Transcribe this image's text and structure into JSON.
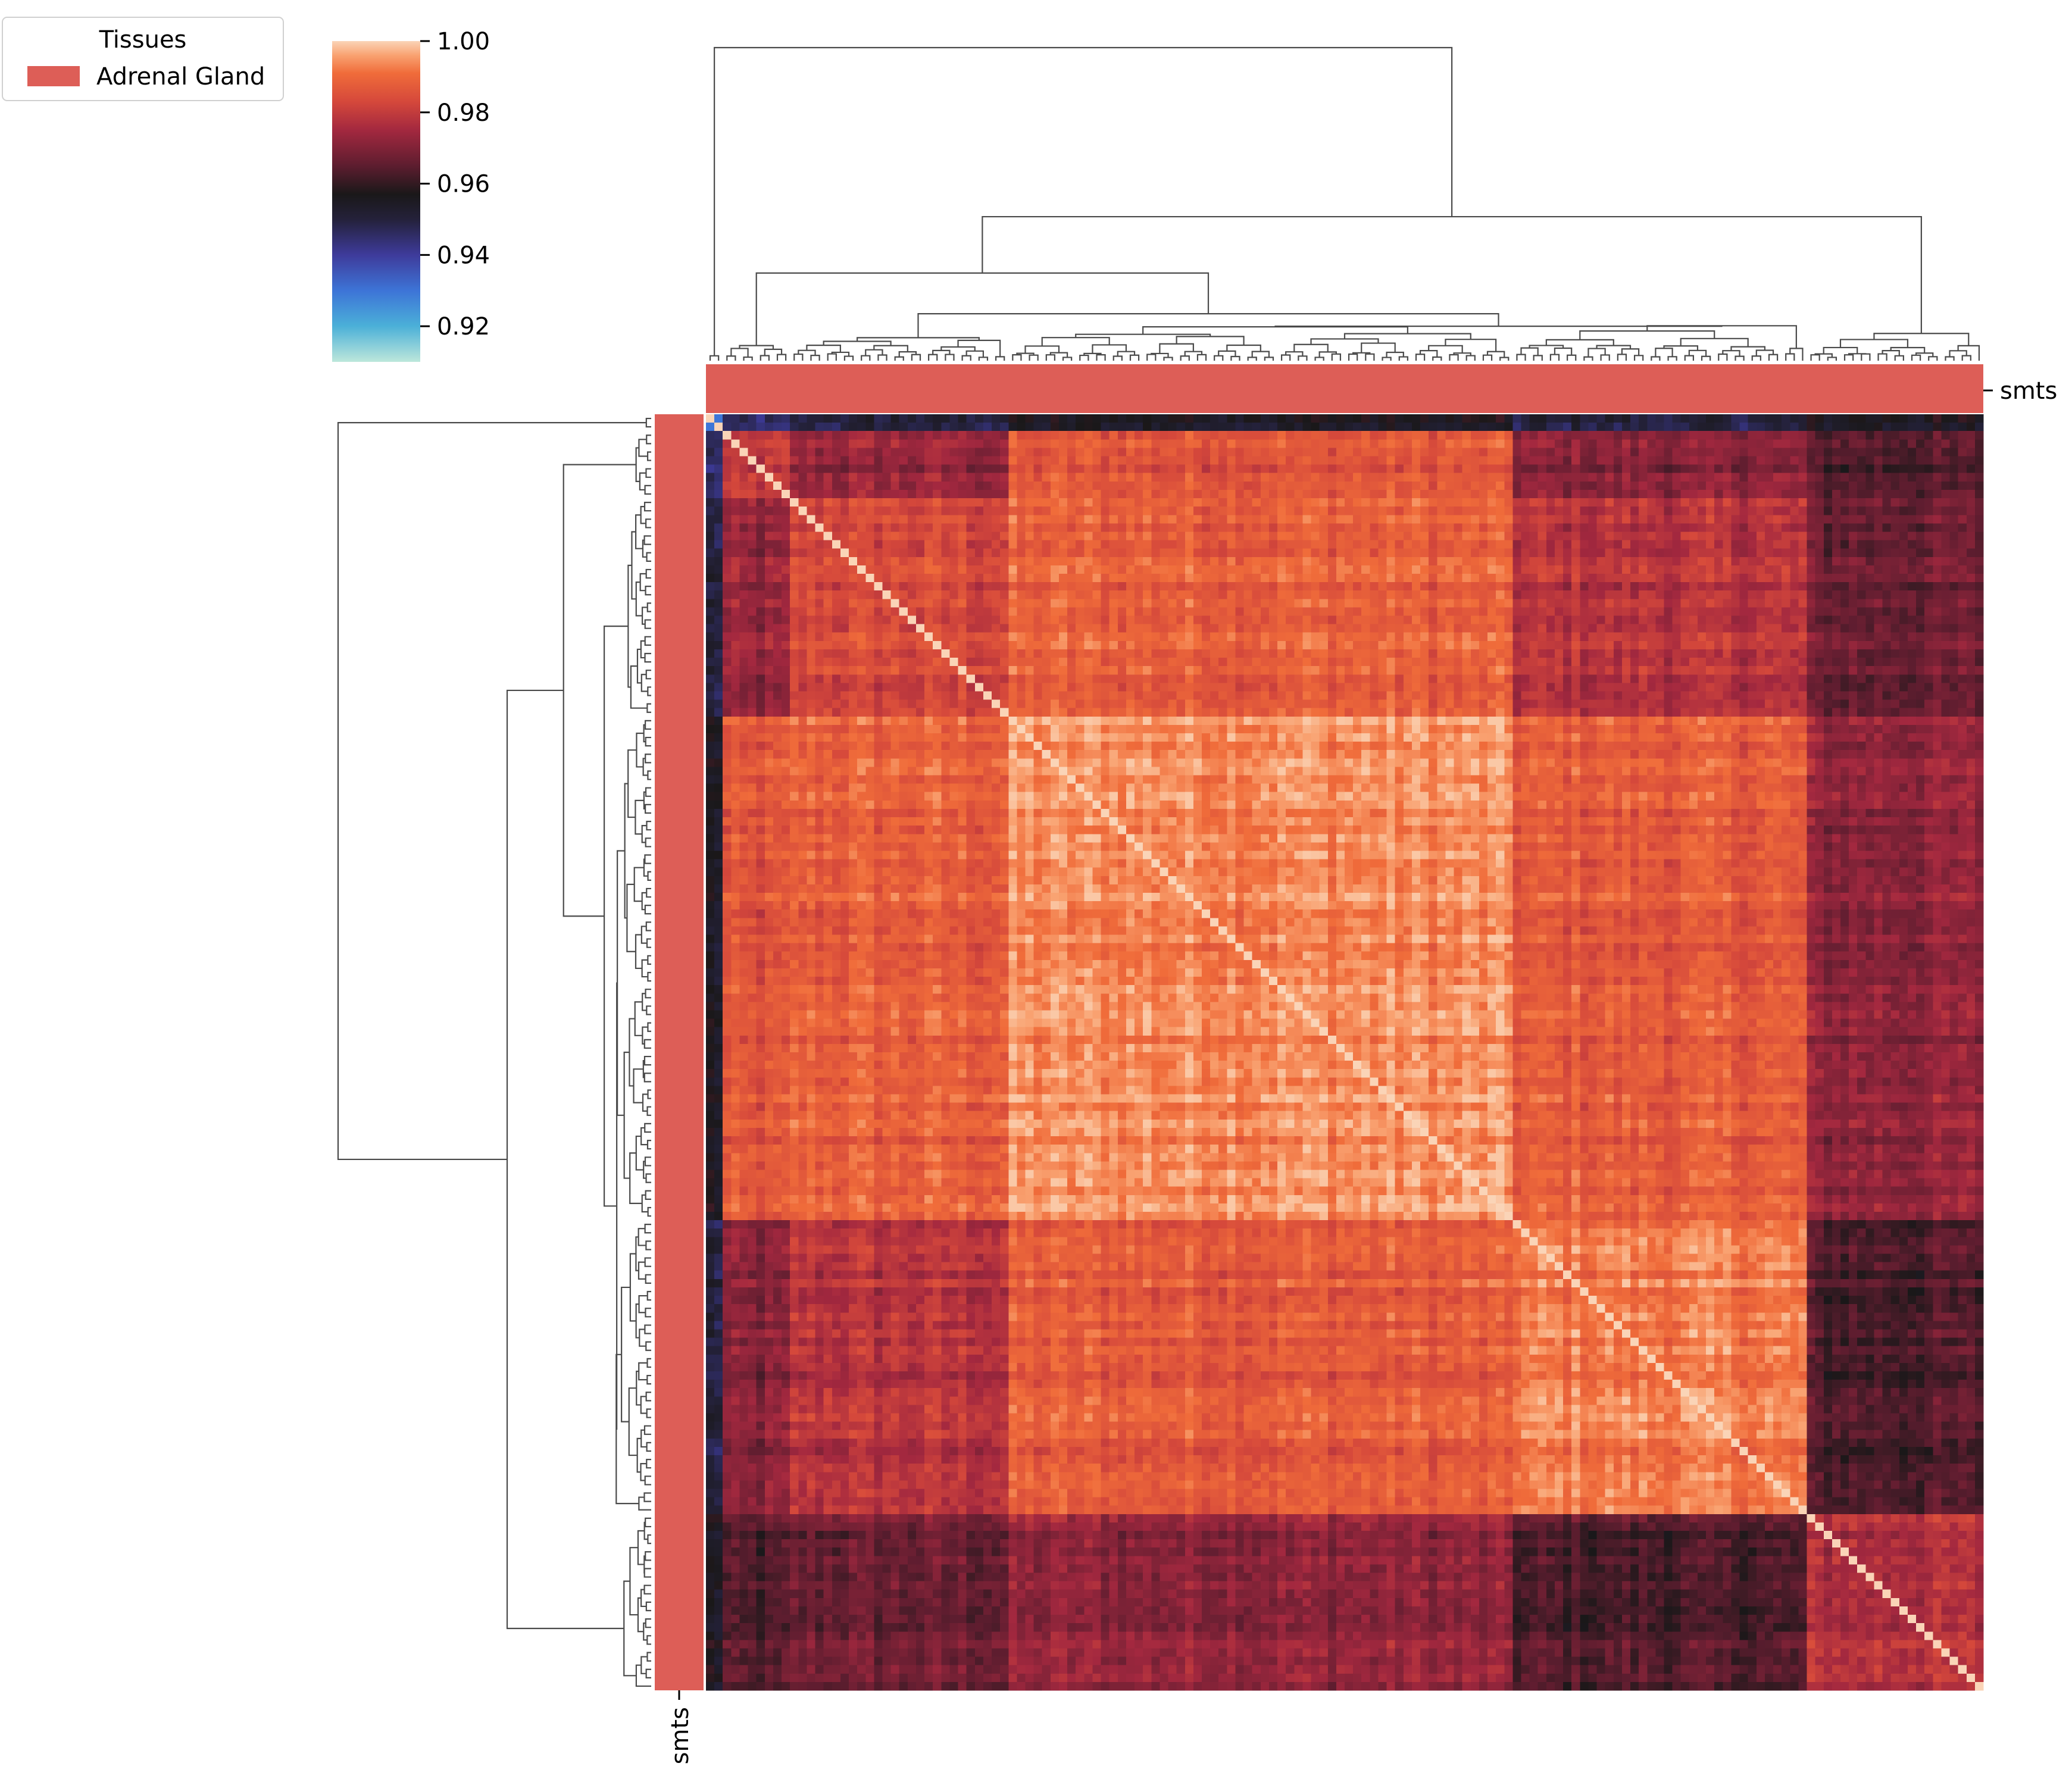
{
  "chart_data": {
    "type": "heatmap",
    "title": "",
    "subtitle": "",
    "xlabel": "",
    "ylabel": "",
    "legend": {
      "title": "Tissues",
      "placement": "top-left",
      "entries": [
        {
          "label": "Adrenal Gland",
          "color": "#dd5e57"
        }
      ]
    },
    "annotation_track": {
      "col_label": "smts",
      "row_label": "smts",
      "category": "Adrenal Gland",
      "color": "#dd5e57"
    },
    "colorbar": {
      "colormap": "icefire",
      "vmin": 0.91,
      "vmax": 1.0,
      "ticks": [
        0.92,
        0.94,
        0.96,
        0.98,
        1.0
      ],
      "tick_labels": [
        "0.92",
        "0.94",
        "0.96",
        "0.98",
        "1.00"
      ],
      "stops": [
        {
          "value": 0.91,
          "color": "#bde7db"
        },
        {
          "value": 0.92,
          "color": "#4bb0d8"
        },
        {
          "value": 0.93,
          "color": "#3d74d7"
        },
        {
          "value": 0.94,
          "color": "#3e3b9b"
        },
        {
          "value": 0.95,
          "color": "#24213a"
        },
        {
          "value": 0.957,
          "color": "#1a1819"
        },
        {
          "value": 0.965,
          "color": "#5d1d2f"
        },
        {
          "value": 0.975,
          "color": "#a3283f"
        },
        {
          "value": 0.983,
          "color": "#d5483b"
        },
        {
          "value": 0.991,
          "color": "#f06c3a"
        },
        {
          "value": 0.996,
          "color": "#f9a271"
        },
        {
          "value": 1.0,
          "color": "#fad4b7"
        }
      ]
    },
    "matrix": {
      "n_samples": 152,
      "diagonal_value": 1.0,
      "leaf_order_clusters": [
        {
          "size": 2,
          "mean_within": 0.93
        },
        {
          "size": 8,
          "mean_within": 0.977
        },
        {
          "size": 26,
          "mean_within": 0.983
        },
        {
          "size": 60,
          "mean_within": 0.994
        },
        {
          "size": 35,
          "mean_within": 0.992
        },
        {
          "size": 21,
          "mean_within": 0.977
        }
      ],
      "between_cluster_means": [
        [
          0.93,
          0.945,
          0.95,
          0.955,
          0.95,
          0.955
        ],
        [
          0.945,
          0.977,
          0.972,
          0.985,
          0.97,
          0.963
        ],
        [
          0.95,
          0.972,
          0.983,
          0.988,
          0.978,
          0.967
        ],
        [
          0.955,
          0.985,
          0.988,
          0.994,
          0.987,
          0.972
        ],
        [
          0.95,
          0.97,
          0.978,
          0.987,
          0.992,
          0.963
        ],
        [
          0.955,
          0.963,
          0.967,
          0.972,
          0.963,
          0.977
        ]
      ]
    },
    "dendrogram": {
      "linkage_heights": [
        1.0,
        0.58,
        0.46,
        0.32,
        0.28,
        0.15,
        0.05
      ]
    }
  }
}
